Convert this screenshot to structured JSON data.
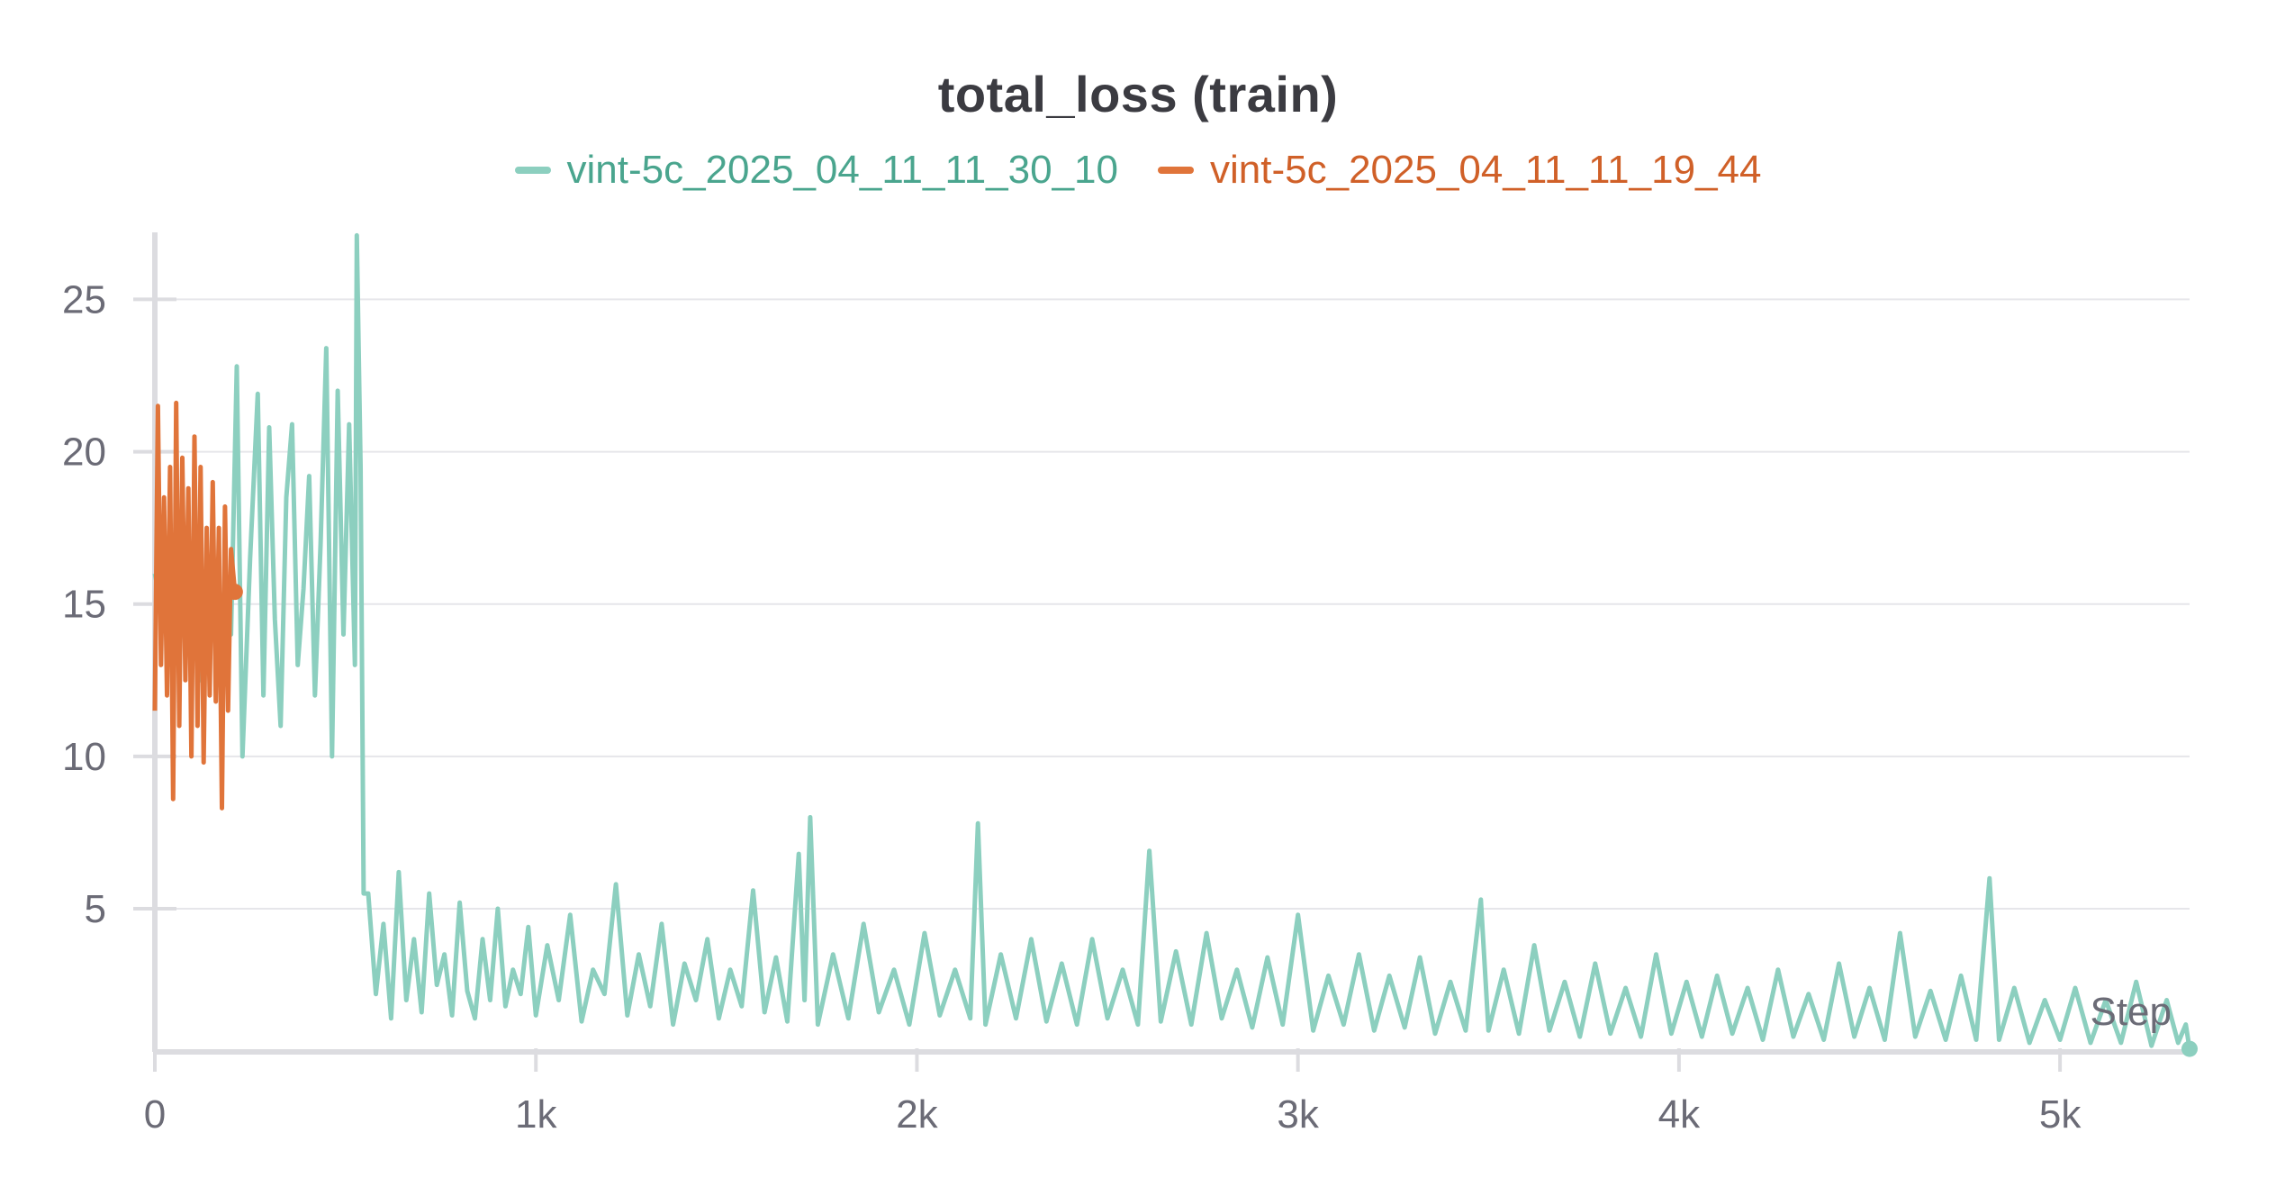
{
  "chart_data": {
    "type": "line",
    "title": "total_loss (train)",
    "xlabel": "Step",
    "ylabel": "",
    "xlim": [
      0,
      5340
    ],
    "ylim": [
      0.3,
      27.2
    ],
    "x_ticks": [
      {
        "value": 0,
        "label": "0"
      },
      {
        "value": 1000,
        "label": "1k"
      },
      {
        "value": 2000,
        "label": "2k"
      },
      {
        "value": 3000,
        "label": "3k"
      },
      {
        "value": 4000,
        "label": "4k"
      },
      {
        "value": 5000,
        "label": "5k"
      }
    ],
    "y_ticks": [
      {
        "value": 5,
        "label": "5"
      },
      {
        "value": 10,
        "label": "10"
      },
      {
        "value": 15,
        "label": "15"
      },
      {
        "value": 20,
        "label": "20"
      },
      {
        "value": 25,
        "label": "25"
      }
    ],
    "grid": "horizontal",
    "legend_position": "top-center",
    "series": [
      {
        "name": "vint-5c_2025_04_11_11_30_10",
        "color": "#8ccfbf",
        "legend_text_color": "#4aa58e",
        "end_point": [
          5340,
          0.4
        ],
        "points": [
          [
            0,
            16.0
          ],
          [
            40,
            13.5
          ],
          [
            80,
            17.0
          ],
          [
            120,
            12.5
          ],
          [
            160,
            15.8
          ],
          [
            200,
            14.0
          ],
          [
            215,
            22.8
          ],
          [
            230,
            10.0
          ],
          [
            250,
            16.5
          ],
          [
            270,
            21.9
          ],
          [
            285,
            12.0
          ],
          [
            300,
            20.8
          ],
          [
            315,
            14.5
          ],
          [
            330,
            11.0
          ],
          [
            345,
            18.5
          ],
          [
            360,
            20.9
          ],
          [
            375,
            13.0
          ],
          [
            390,
            15.5
          ],
          [
            405,
            19.2
          ],
          [
            420,
            12.0
          ],
          [
            435,
            17.0
          ],
          [
            450,
            23.4
          ],
          [
            465,
            10.0
          ],
          [
            480,
            22.0
          ],
          [
            495,
            14.0
          ],
          [
            510,
            20.9
          ],
          [
            525,
            13.0
          ],
          [
            530,
            27.1
          ],
          [
            540,
            19.5
          ],
          [
            548,
            5.5
          ],
          [
            560,
            5.5
          ],
          [
            580,
            2.2
          ],
          [
            600,
            4.5
          ],
          [
            620,
            1.4
          ],
          [
            640,
            6.2
          ],
          [
            660,
            2.0
          ],
          [
            680,
            4.0
          ],
          [
            700,
            1.6
          ],
          [
            720,
            5.5
          ],
          [
            740,
            2.5
          ],
          [
            760,
            3.5
          ],
          [
            780,
            1.5
          ],
          [
            800,
            5.2
          ],
          [
            820,
            2.3
          ],
          [
            840,
            1.4
          ],
          [
            860,
            4.0
          ],
          [
            880,
            2.0
          ],
          [
            900,
            5.0
          ],
          [
            920,
            1.8
          ],
          [
            940,
            3.0
          ],
          [
            960,
            2.2
          ],
          [
            980,
            4.4
          ],
          [
            1000,
            1.5
          ],
          [
            1030,
            3.8
          ],
          [
            1060,
            2.0
          ],
          [
            1090,
            4.8
          ],
          [
            1120,
            1.3
          ],
          [
            1150,
            3.0
          ],
          [
            1180,
            2.2
          ],
          [
            1210,
            5.8
          ],
          [
            1240,
            1.5
          ],
          [
            1270,
            3.5
          ],
          [
            1300,
            1.8
          ],
          [
            1330,
            4.5
          ],
          [
            1360,
            1.2
          ],
          [
            1390,
            3.2
          ],
          [
            1420,
            2.0
          ],
          [
            1450,
            4.0
          ],
          [
            1480,
            1.4
          ],
          [
            1510,
            3.0
          ],
          [
            1540,
            1.8
          ],
          [
            1570,
            5.6
          ],
          [
            1600,
            1.6
          ],
          [
            1630,
            3.4
          ],
          [
            1660,
            1.3
          ],
          [
            1690,
            6.8
          ],
          [
            1705,
            2.0
          ],
          [
            1720,
            8.0
          ],
          [
            1740,
            1.2
          ],
          [
            1780,
            3.5
          ],
          [
            1820,
            1.4
          ],
          [
            1860,
            4.5
          ],
          [
            1900,
            1.6
          ],
          [
            1940,
            3.0
          ],
          [
            1980,
            1.2
          ],
          [
            2020,
            4.2
          ],
          [
            2060,
            1.5
          ],
          [
            2100,
            3.0
          ],
          [
            2140,
            1.4
          ],
          [
            2160,
            7.8
          ],
          [
            2180,
            1.2
          ],
          [
            2220,
            3.5
          ],
          [
            2260,
            1.4
          ],
          [
            2300,
            4.0
          ],
          [
            2340,
            1.3
          ],
          [
            2380,
            3.2
          ],
          [
            2420,
            1.2
          ],
          [
            2460,
            4.0
          ],
          [
            2500,
            1.4
          ],
          [
            2540,
            3.0
          ],
          [
            2580,
            1.2
          ],
          [
            2610,
            6.9
          ],
          [
            2640,
            1.3
          ],
          [
            2680,
            3.6
          ],
          [
            2720,
            1.2
          ],
          [
            2760,
            4.2
          ],
          [
            2800,
            1.4
          ],
          [
            2840,
            3.0
          ],
          [
            2880,
            1.1
          ],
          [
            2920,
            3.4
          ],
          [
            2960,
            1.2
          ],
          [
            3000,
            4.8
          ],
          [
            3040,
            1.0
          ],
          [
            3080,
            2.8
          ],
          [
            3120,
            1.2
          ],
          [
            3160,
            3.5
          ],
          [
            3200,
            1.0
          ],
          [
            3240,
            2.8
          ],
          [
            3280,
            1.1
          ],
          [
            3320,
            3.4
          ],
          [
            3360,
            0.9
          ],
          [
            3400,
            2.6
          ],
          [
            3440,
            1.0
          ],
          [
            3480,
            5.3
          ],
          [
            3500,
            1.0
          ],
          [
            3540,
            3.0
          ],
          [
            3580,
            0.9
          ],
          [
            3620,
            3.8
          ],
          [
            3660,
            1.0
          ],
          [
            3700,
            2.6
          ],
          [
            3740,
            0.8
          ],
          [
            3780,
            3.2
          ],
          [
            3820,
            0.9
          ],
          [
            3860,
            2.4
          ],
          [
            3900,
            0.8
          ],
          [
            3940,
            3.5
          ],
          [
            3980,
            0.9
          ],
          [
            4020,
            2.6
          ],
          [
            4060,
            0.8
          ],
          [
            4100,
            2.8
          ],
          [
            4140,
            0.9
          ],
          [
            4180,
            2.4
          ],
          [
            4220,
            0.7
          ],
          [
            4260,
            3.0
          ],
          [
            4300,
            0.8
          ],
          [
            4340,
            2.2
          ],
          [
            4380,
            0.7
          ],
          [
            4420,
            3.2
          ],
          [
            4460,
            0.8
          ],
          [
            4500,
            2.4
          ],
          [
            4540,
            0.7
          ],
          [
            4580,
            4.2
          ],
          [
            4620,
            0.8
          ],
          [
            4660,
            2.3
          ],
          [
            4700,
            0.7
          ],
          [
            4740,
            2.8
          ],
          [
            4780,
            0.7
          ],
          [
            4815,
            6.0
          ],
          [
            4840,
            0.7
          ],
          [
            4880,
            2.4
          ],
          [
            4920,
            0.6
          ],
          [
            4960,
            2.0
          ],
          [
            5000,
            0.7
          ],
          [
            5040,
            2.4
          ],
          [
            5080,
            0.6
          ],
          [
            5120,
            2.0
          ],
          [
            5160,
            0.6
          ],
          [
            5200,
            2.6
          ],
          [
            5240,
            0.5
          ],
          [
            5280,
            2.0
          ],
          [
            5310,
            0.6
          ],
          [
            5330,
            1.2
          ],
          [
            5340,
            0.4
          ]
        ]
      },
      {
        "name": "vint-5c_2025_04_11_11_19_44",
        "color": "#e0743a",
        "legend_text_color": "#d06028",
        "end_point": [
          210,
          15.4
        ],
        "points": [
          [
            0,
            11.5
          ],
          [
            8,
            21.5
          ],
          [
            16,
            13.0
          ],
          [
            24,
            18.5
          ],
          [
            32,
            12.0
          ],
          [
            40,
            19.5
          ],
          [
            48,
            8.6
          ],
          [
            56,
            21.6
          ],
          [
            64,
            11.0
          ],
          [
            72,
            19.8
          ],
          [
            80,
            12.5
          ],
          [
            88,
            18.8
          ],
          [
            96,
            10.0
          ],
          [
            104,
            20.5
          ],
          [
            112,
            11.0
          ],
          [
            120,
            19.5
          ],
          [
            128,
            9.8
          ],
          [
            136,
            17.5
          ],
          [
            144,
            12.0
          ],
          [
            152,
            19.0
          ],
          [
            160,
            11.8
          ],
          [
            168,
            17.5
          ],
          [
            176,
            8.3
          ],
          [
            184,
            18.2
          ],
          [
            192,
            11.5
          ],
          [
            200,
            16.8
          ],
          [
            210,
            15.4
          ]
        ]
      }
    ]
  }
}
